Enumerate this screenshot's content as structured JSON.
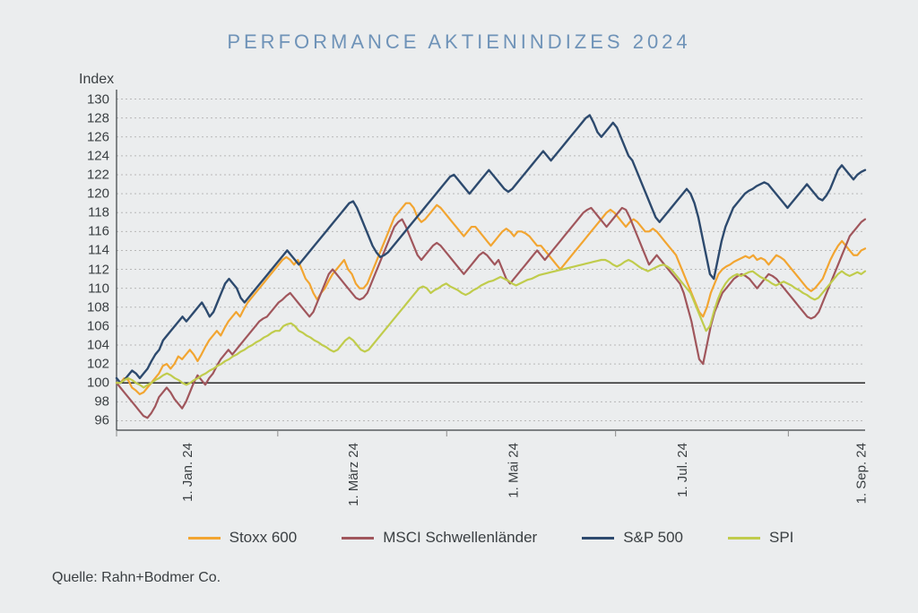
{
  "chart": {
    "type": "line",
    "title": "PERFORMANCE AKTIENINDIZES 2024",
    "title_color": "#6f93b8",
    "title_fontsize": 22,
    "background_color": "#ebedee",
    "ylabel": "Index",
    "y": {
      "min": 95,
      "max": 131,
      "ticks": [
        96,
        98,
        100,
        102,
        104,
        106,
        108,
        110,
        112,
        114,
        116,
        118,
        120,
        122,
        124,
        126,
        128,
        130
      ],
      "tick_fontsize": 15,
      "grid_color": "#b8b8b8",
      "grid_dash": "2,3",
      "baseline_value": 100,
      "baseline_color": "#2a2a2a",
      "baseline_width": 1.5
    },
    "x": {
      "min": 0,
      "max": 195,
      "ticks": [
        {
          "pos": 0,
          "label": "1. Jan. 24"
        },
        {
          "pos": 42,
          "label": "1. März 24"
        },
        {
          "pos": 86,
          "label": "1. Mai 24"
        },
        {
          "pos": 130,
          "label": "1. Jul. 24"
        },
        {
          "pos": 175,
          "label": "1. Sep. 24"
        }
      ],
      "tick_fontsize": 15,
      "tick_color": "#8a8a8a"
    },
    "axis_line_color": "#3a3f42",
    "series": [
      {
        "name": "Stoxx 600",
        "color": "#f2a531",
        "width": 2.2,
        "data": [
          100,
          100,
          100.5,
          100.3,
          99.5,
          99.2,
          98.8,
          99,
          99.5,
          100,
          100.5,
          101,
          101.8,
          102,
          101.5,
          102,
          102.8,
          102.5,
          103,
          103.5,
          103,
          102.3,
          103,
          103.8,
          104.5,
          105,
          105.5,
          105,
          105.8,
          106.5,
          107,
          107.5,
          107,
          107.8,
          108.5,
          109,
          109.5,
          110,
          110.5,
          111,
          111.5,
          112,
          112.5,
          113,
          113.3,
          113,
          112.5,
          113,
          112,
          111,
          110.5,
          109.5,
          108.8,
          109.5,
          110,
          110.8,
          111.5,
          112,
          112.5,
          113,
          112,
          111.5,
          110.5,
          110,
          110,
          110.5,
          111.5,
          112.5,
          113.5,
          114.5,
          115.5,
          116.5,
          117.5,
          118,
          118.5,
          119,
          119,
          118.5,
          117.5,
          117,
          117.3,
          117.8,
          118.3,
          118.8,
          118.5,
          118,
          117.5,
          117,
          116.5,
          116,
          115.5,
          116,
          116.5,
          116.5,
          116,
          115.5,
          115,
          114.5,
          115,
          115.5,
          116,
          116.3,
          116,
          115.5,
          116,
          116,
          115.8,
          115.5,
          115,
          114.5,
          114.5,
          114,
          113.5,
          113,
          112.5,
          112,
          112.5,
          113,
          113.5,
          114,
          114.5,
          115,
          115.5,
          116,
          116.5,
          117,
          117.5,
          118,
          118.3,
          118,
          117.5,
          117,
          116.5,
          117,
          117.3,
          117,
          116.5,
          116,
          116,
          116.3,
          116,
          115.5,
          115,
          114.5,
          114,
          113.5,
          112.5,
          111.5,
          110.5,
          109.5,
          108.5,
          107.5,
          107,
          108,
          109.5,
          110.5,
          111.5,
          112,
          112.3,
          112.5,
          112.8,
          113,
          113.2,
          113.4,
          113.2,
          113.5,
          113,
          113.2,
          113,
          112.5,
          113,
          113.5,
          113.3,
          113,
          112.5,
          112,
          111.5,
          111,
          110.5,
          110,
          109.7,
          110,
          110.5,
          111,
          112,
          113,
          113.8,
          114.5,
          115,
          114.5,
          114,
          113.5,
          113.5,
          114,
          114.2
        ]
      },
      {
        "name": "MSCI Schwellenländer",
        "color": "#a0565c",
        "width": 2.2,
        "data": [
          100,
          99.5,
          99,
          98.5,
          98,
          97.5,
          97,
          96.5,
          96.3,
          96.8,
          97.5,
          98.5,
          99,
          99.5,
          99,
          98.3,
          97.8,
          97.3,
          98,
          99,
          100,
          100.8,
          100.3,
          99.8,
          100.5,
          101,
          101.8,
          102.5,
          103,
          103.5,
          103,
          103.5,
          104,
          104.5,
          105,
          105.5,
          106,
          106.5,
          106.8,
          107,
          107.5,
          108,
          108.5,
          108.8,
          109.2,
          109.5,
          109,
          108.5,
          108,
          107.5,
          107,
          107.5,
          108.5,
          109.5,
          110.5,
          111.5,
          112,
          111.5,
          111,
          110.5,
          110,
          109.5,
          109,
          108.8,
          109,
          109.5,
          110.5,
          111.5,
          112.5,
          113.5,
          114.5,
          115.5,
          116.5,
          117,
          117.3,
          116.5,
          115.5,
          114.5,
          113.5,
          113,
          113.5,
          114,
          114.5,
          114.8,
          114.5,
          114,
          113.5,
          113,
          112.5,
          112,
          111.5,
          112,
          112.5,
          113,
          113.5,
          113.8,
          113.5,
          113,
          112.5,
          113,
          112,
          111,
          110.5,
          111,
          111.5,
          112,
          112.5,
          113,
          113.5,
          114,
          113.5,
          113,
          113.5,
          114,
          114.5,
          115,
          115.5,
          116,
          116.5,
          117,
          117.5,
          118,
          118.3,
          118.5,
          118,
          117.5,
          117,
          116.5,
          117,
          117.5,
          118,
          118.5,
          118.3,
          117.5,
          116.5,
          115.5,
          114.5,
          113.5,
          112.5,
          113,
          113.5,
          113,
          112.5,
          112,
          111.5,
          111,
          110.5,
          109.5,
          108,
          106.5,
          104.5,
          102.5,
          102,
          104,
          106,
          107.5,
          108.5,
          109.5,
          110,
          110.5,
          111,
          111.3,
          111.5,
          111.3,
          111,
          110.5,
          110,
          110.5,
          111,
          111.5,
          111.3,
          111,
          110.5,
          110,
          109.5,
          109,
          108.5,
          108,
          107.5,
          107,
          106.8,
          107,
          107.5,
          108.5,
          109.5,
          110.5,
          111.5,
          112.5,
          113.5,
          114.5,
          115.5,
          116,
          116.5,
          117,
          117.3
        ]
      },
      {
        "name": "S&P 500",
        "color": "#2d4a6e",
        "width": 2.4,
        "data": [
          100.5,
          100,
          100.3,
          100.8,
          101.3,
          101,
          100.5,
          101,
          101.5,
          102.3,
          103,
          103.5,
          104.5,
          105,
          105.5,
          106,
          106.5,
          107,
          106.5,
          107,
          107.5,
          108,
          108.5,
          107.8,
          107,
          107.5,
          108.5,
          109.5,
          110.5,
          111,
          110.5,
          110,
          109,
          108.5,
          109,
          109.5,
          110,
          110.5,
          111,
          111.5,
          112,
          112.5,
          113,
          113.5,
          114,
          113.5,
          113,
          112.5,
          113,
          113.5,
          114,
          114.5,
          115,
          115.5,
          116,
          116.5,
          117,
          117.5,
          118,
          118.5,
          119,
          119.2,
          118.5,
          117.5,
          116.5,
          115.5,
          114.5,
          113.8,
          113.3,
          113.5,
          113.8,
          114.3,
          114.8,
          115.3,
          115.8,
          116.3,
          116.8,
          117.3,
          117.8,
          118.3,
          118.8,
          119.3,
          119.8,
          120.3,
          120.8,
          121.3,
          121.8,
          122,
          121.5,
          121,
          120.5,
          120,
          120.5,
          121,
          121.5,
          122,
          122.5,
          122,
          121.5,
          121,
          120.5,
          120.2,
          120.5,
          121,
          121.5,
          122,
          122.5,
          123,
          123.5,
          124,
          124.5,
          124,
          123.5,
          124,
          124.5,
          125,
          125.5,
          126,
          126.5,
          127,
          127.5,
          128,
          128.3,
          127.5,
          126.5,
          126,
          126.5,
          127,
          127.5,
          127,
          126,
          125,
          124,
          123.5,
          122.5,
          121.5,
          120.5,
          119.5,
          118.5,
          117.5,
          117,
          117.5,
          118,
          118.5,
          119,
          119.5,
          120,
          120.5,
          120,
          119,
          117.5,
          115.5,
          113.5,
          111.5,
          111,
          113,
          115,
          116.5,
          117.5,
          118.5,
          119,
          119.5,
          120,
          120.3,
          120.5,
          120.8,
          121,
          121.2,
          121,
          120.5,
          120,
          119.5,
          119,
          118.5,
          119,
          119.5,
          120,
          120.5,
          121,
          120.5,
          120,
          119.5,
          119.3,
          119.8,
          120.5,
          121.5,
          122.5,
          123,
          122.5,
          122,
          121.5,
          122,
          122.3,
          122.5
        ]
      },
      {
        "name": "SPI",
        "color": "#c0cc4c",
        "width": 2.2,
        "data": [
          100,
          100,
          100.3,
          100.5,
          100.3,
          100,
          99.8,
          99.5,
          99.8,
          100,
          100.3,
          100.5,
          100.8,
          101,
          100.8,
          100.5,
          100.3,
          100,
          99.8,
          100,
          100.3,
          100.5,
          100.8,
          101,
          101.3,
          101.5,
          101.8,
          102,
          102.3,
          102.5,
          102.8,
          103,
          103.3,
          103.5,
          103.8,
          104,
          104.3,
          104.5,
          104.8,
          105,
          105.3,
          105.5,
          105.5,
          106,
          106.2,
          106.3,
          106,
          105.5,
          105.3,
          105,
          104.8,
          104.5,
          104.3,
          104,
          103.8,
          103.5,
          103.3,
          103.5,
          104,
          104.5,
          104.8,
          104.5,
          104,
          103.5,
          103.3,
          103.5,
          104,
          104.5,
          105,
          105.5,
          106,
          106.5,
          107,
          107.5,
          108,
          108.5,
          109,
          109.5,
          110,
          110.2,
          110,
          109.5,
          109.8,
          110,
          110.3,
          110.5,
          110.2,
          110,
          109.8,
          109.5,
          109.3,
          109.5,
          109.8,
          110,
          110.3,
          110.5,
          110.7,
          110.8,
          111,
          111.2,
          111,
          110.8,
          110.5,
          110.3,
          110.5,
          110.7,
          110.9,
          111,
          111.2,
          111.4,
          111.5,
          111.6,
          111.7,
          111.8,
          111.9,
          112,
          112.1,
          112.2,
          112.3,
          112.4,
          112.5,
          112.6,
          112.7,
          112.8,
          112.9,
          113,
          113,
          112.8,
          112.5,
          112.3,
          112.5,
          112.8,
          113,
          112.8,
          112.5,
          112.2,
          112,
          111.8,
          112,
          112.2,
          112.4,
          112.5,
          112.3,
          112,
          111.5,
          111,
          110.5,
          110,
          109.5,
          108.5,
          107.5,
          106.5,
          105.5,
          106,
          107.5,
          108.8,
          109.8,
          110.5,
          111,
          111.3,
          111.5,
          111.3,
          111.5,
          111.7,
          111.8,
          111.5,
          111.2,
          111,
          110.8,
          110.5,
          110.3,
          110.5,
          110.7,
          110.5,
          110.3,
          110,
          109.8,
          109.5,
          109.3,
          109,
          108.8,
          109,
          109.5,
          110,
          110.5,
          111,
          111.5,
          111.8,
          111.5,
          111.3,
          111.5,
          111.7,
          111.5,
          111.8
        ]
      }
    ],
    "legend": {
      "items": [
        {
          "label": "Stoxx 600",
          "color": "#f2a531"
        },
        {
          "label": "MSCI Schwellenländer",
          "color": "#a0565c"
        },
        {
          "label": "S&P 500",
          "color": "#2d4a6e"
        },
        {
          "label": "SPI",
          "color": "#c0cc4c"
        }
      ],
      "fontsize": 17
    },
    "source": "Quelle: Rahn+Bodmer Co."
  }
}
